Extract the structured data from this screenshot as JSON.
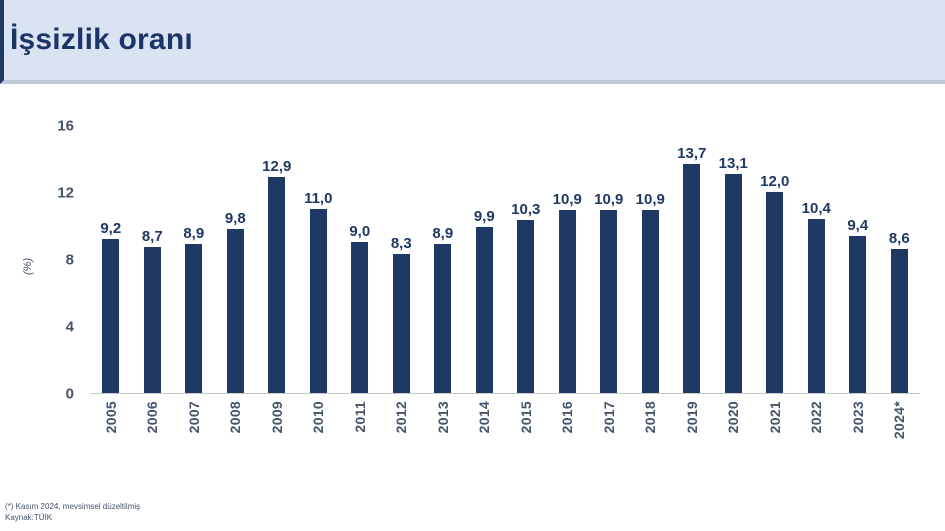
{
  "header": {
    "title": "İşsizlik oranı"
  },
  "chart_data": {
    "type": "bar",
    "title": "İşsizlik oranı",
    "xlabel": "",
    "ylabel": "(%)",
    "ylim": [
      0,
      16
    ],
    "yticks": [
      0,
      4,
      8,
      12,
      16
    ],
    "grid": false,
    "legend": false,
    "categories": [
      "2005",
      "2006",
      "2007",
      "2008",
      "2009",
      "2010",
      "2011",
      "2012",
      "2013",
      "2014",
      "2015",
      "2016",
      "2017",
      "2018",
      "2019",
      "2020",
      "2021",
      "2022",
      "2023",
      "2024*"
    ],
    "values": [
      9.2,
      8.7,
      8.9,
      9.8,
      12.9,
      11.0,
      9.0,
      8.3,
      8.9,
      9.9,
      10.3,
      10.9,
      10.9,
      10.9,
      13.7,
      13.1,
      12.0,
      10.4,
      9.4,
      8.6
    ],
    "value_labels": [
      "9,2",
      "8,7",
      "8,9",
      "9,8",
      "12,9",
      "11,0",
      "9,0",
      "8,3",
      "8,9",
      "9,9",
      "10,3",
      "10,9",
      "10,9",
      "10,9",
      "13,7",
      "13,1",
      "12,0",
      "10,4",
      "9,4",
      "8,6"
    ],
    "bar_color": "#1f3864"
  },
  "colors": {
    "header_bg": "#dae3f1",
    "header_border": "#bfc7da",
    "accent_navy": "#1f3864",
    "axis_text": "#44546a"
  },
  "footer": {
    "line1": "(*) Kasım 2024, mevsimsel düzeltilmiş",
    "line2": "Kaynak:TÜİK"
  }
}
